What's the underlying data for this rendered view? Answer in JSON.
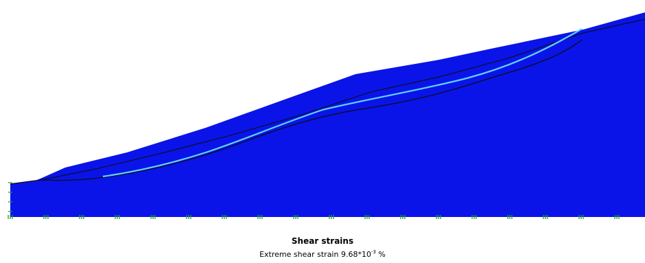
{
  "colors": {
    "strain_fill": "#0a14e8",
    "background": "#ffffff",
    "slip_surface": "#0a0f3a",
    "shear_band": "#5fd3ff",
    "fixity_marker": "#1f9e2a"
  },
  "caption": {
    "title": "Shear strains",
    "extreme_prefix": "Extreme shear strain 9.68*10",
    "extreme_exponent": "-3",
    "extreme_unit": " %"
  },
  "icons": {
    "fixity_markers": "green-fixity-icon"
  }
}
